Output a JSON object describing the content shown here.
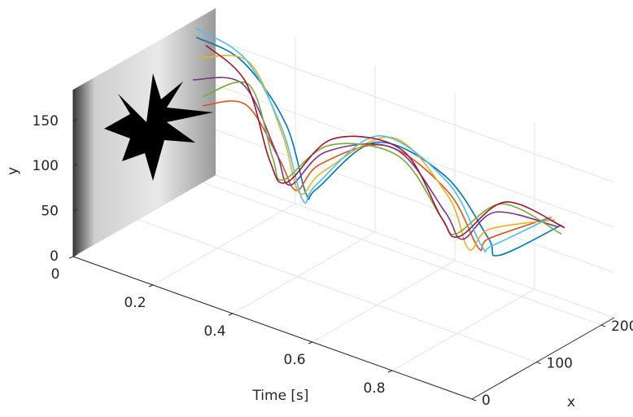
{
  "chart_data": {
    "type": "line3d",
    "tlabel": "Time [s]",
    "xlabel": "x",
    "ylabel": "y",
    "tlim": [
      0,
      1
    ],
    "tticks": [
      0,
      0.2,
      0.4,
      0.6,
      0.8
    ],
    "xlim": [
      0,
      220
    ],
    "xticks": [
      0,
      100,
      200
    ],
    "ylim": [
      0,
      185
    ],
    "yticks": [
      0,
      50,
      100,
      150
    ],
    "grid": true,
    "t": [
      0,
      0.1,
      0.2,
      0.3,
      0.4,
      0.5,
      0.6,
      0.7,
      0.8,
      0.9
    ],
    "series": [
      {
        "color": "#0072bd",
        "x": [
          190,
          200,
          205,
          175,
          130,
          160,
          205,
          210,
          165,
          200
        ],
        "y": [
          165,
          150,
          95,
          45,
          85,
          140,
          100,
          45,
          60,
          95
        ]
      },
      {
        "color": "#d95319",
        "x": [
          200,
          205,
          195,
          160,
          135,
          175,
          210,
          195,
          150,
          185
        ],
        "y": [
          85,
          100,
          60,
          55,
          110,
          130,
          80,
          40,
          85,
          110
        ]
      },
      {
        "color": "#edb120",
        "x": [
          195,
          210,
          200,
          165,
          140,
          185,
          210,
          180,
          150,
          190
        ],
        "y": [
          140,
          145,
          85,
          50,
          100,
          135,
          75,
          45,
          95,
          105
        ]
      },
      {
        "color": "#7e2f8e",
        "x": [
          185,
          200,
          190,
          150,
          145,
          190,
          205,
          170,
          160,
          195
        ],
        "y": [
          120,
          125,
          70,
          65,
          120,
          120,
          60,
          60,
          110,
          95
        ]
      },
      {
        "color": "#77ac30",
        "x": [
          200,
          210,
          185,
          140,
          150,
          195,
          200,
          160,
          170,
          200
        ],
        "y": [
          95,
          120,
          65,
          75,
          125,
          110,
          55,
          70,
          115,
          85
        ]
      },
      {
        "color": "#4dbeee",
        "x": [
          190,
          205,
          200,
          170,
          130,
          165,
          210,
          200,
          155,
          185
        ],
        "y": [
          175,
          150,
          90,
          40,
          90,
          145,
          90,
          40,
          75,
          110
        ]
      },
      {
        "color": "#a2142f",
        "x": [
          205,
          205,
          180,
          145,
          155,
          200,
          200,
          165,
          175,
          205
        ],
        "y": [
          150,
          125,
          65,
          70,
          130,
          115,
          55,
          65,
          115,
          90
        ]
      }
    ]
  }
}
